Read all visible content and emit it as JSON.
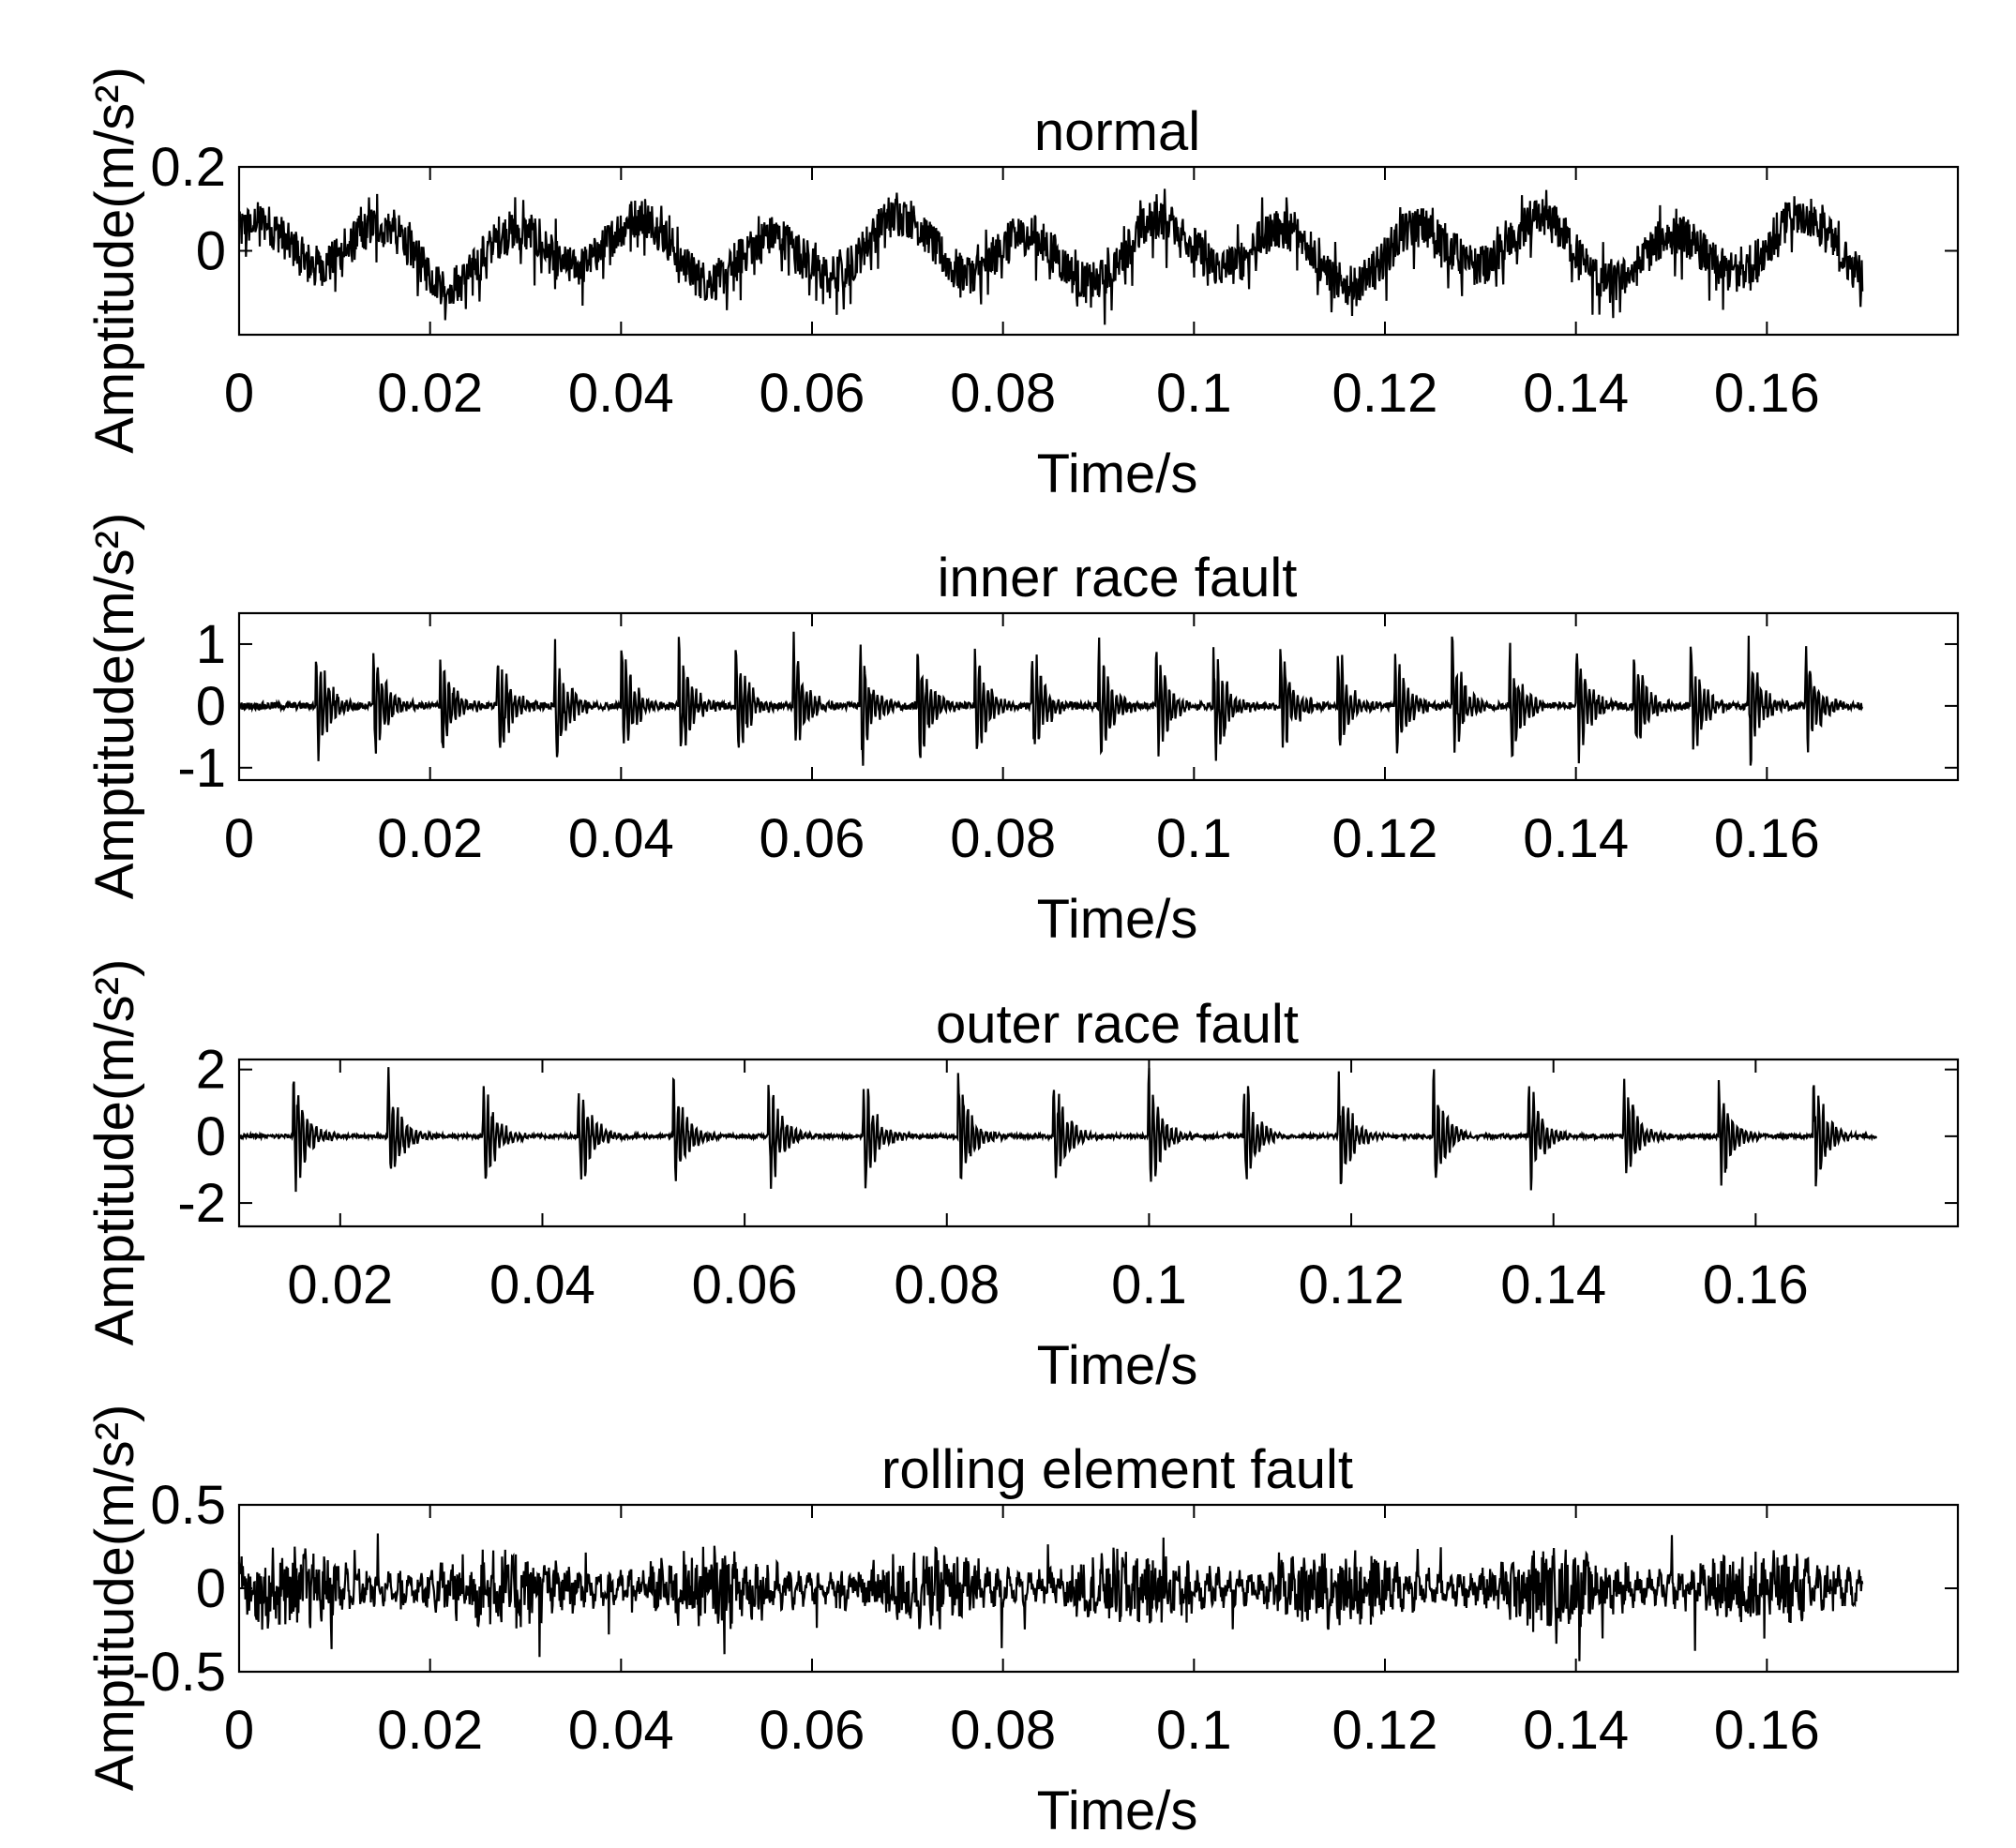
{
  "figure": {
    "background": "#ffffff",
    "line_color": "#000000"
  },
  "chart_data": [
    {
      "type": "line",
      "title": "normal",
      "xlabel": "Time/s",
      "ylabel": "Amptitude(m/s²)",
      "xlim": [
        0,
        0.18
      ],
      "ylim": [
        -0.2,
        0.2
      ],
      "xticks": [
        "0",
        "0.02",
        "0.04",
        "0.06",
        "0.08",
        "0.1",
        "0.12",
        "0.14",
        "0.16"
      ],
      "yticks": [
        "0.2",
        "0"
      ],
      "grid": false,
      "signal": {
        "t_start": 0,
        "t_end": 0.17,
        "baseline_oscillation_amplitude": 0.06,
        "noise_amplitude": 0.09,
        "peak_amplitude": 0.2
      }
    },
    {
      "type": "line",
      "title": "inner race fault",
      "xlabel": "Time/s",
      "ylabel": "Amptitude(m/s²)",
      "xlim": [
        0,
        0.18
      ],
      "ylim": [
        -1.2,
        1.5
      ],
      "xticks": [
        "0",
        "0.02",
        "0.04",
        "0.06",
        "0.08",
        "0.1",
        "0.12",
        "0.14",
        "0.16"
      ],
      "yticks": [
        "1",
        "0",
        "-1"
      ],
      "grid": false,
      "signal": {
        "t_start": 0,
        "t_end": 0.17,
        "impulse_times": [
          0.008,
          0.014,
          0.021,
          0.027,
          0.033,
          0.04,
          0.046,
          0.052,
          0.058,
          0.065,
          0.071,
          0.077,
          0.083,
          0.09,
          0.096,
          0.102,
          0.109,
          0.115,
          0.121,
          0.127,
          0.133,
          0.14,
          0.146,
          0.152,
          0.158,
          0.164
        ],
        "impulse_peak": 1.3,
        "noise_amplitude": 0.12
      }
    },
    {
      "type": "line",
      "title": "outer race fault",
      "xlabel": "Time/s",
      "ylabel": "Amptitude(m/s²)",
      "xlim": [
        0.01,
        0.18
      ],
      "ylim": [
        -2.7,
        2.3
      ],
      "xticks": [
        "0.02",
        "0.04",
        "0.06",
        "0.08",
        "0.1",
        "0.12",
        "0.14",
        "0.16"
      ],
      "yticks": [
        "2",
        "0",
        "-2"
      ],
      "grid": false,
      "signal": {
        "t_start": 0.01,
        "t_end": 0.172,
        "impulse_times": [
          0.0153,
          0.0247,
          0.0341,
          0.0435,
          0.0529,
          0.0623,
          0.0717,
          0.0811,
          0.0905,
          0.0999,
          0.1093,
          0.1187,
          0.1281,
          0.1375,
          0.1469,
          0.1563,
          0.1657
        ],
        "impulse_peak": 2.3,
        "noise_amplitude": 0.12
      }
    },
    {
      "type": "line",
      "title": "rolling element fault",
      "xlabel": "Time/s",
      "ylabel": "Amptitude(m/s²)",
      "xlim": [
        0,
        0.18
      ],
      "ylim": [
        -0.5,
        0.5
      ],
      "xticks": [
        "0",
        "0.02",
        "0.04",
        "0.06",
        "0.08",
        "0.1",
        "0.12",
        "0.14",
        "0.16"
      ],
      "yticks": [
        "0.5",
        "0",
        "-0.5"
      ],
      "grid": false,
      "signal": {
        "t_start": 0,
        "t_end": 0.17,
        "noise_amplitude": 0.2,
        "peak_amplitude": 0.4
      }
    }
  ]
}
